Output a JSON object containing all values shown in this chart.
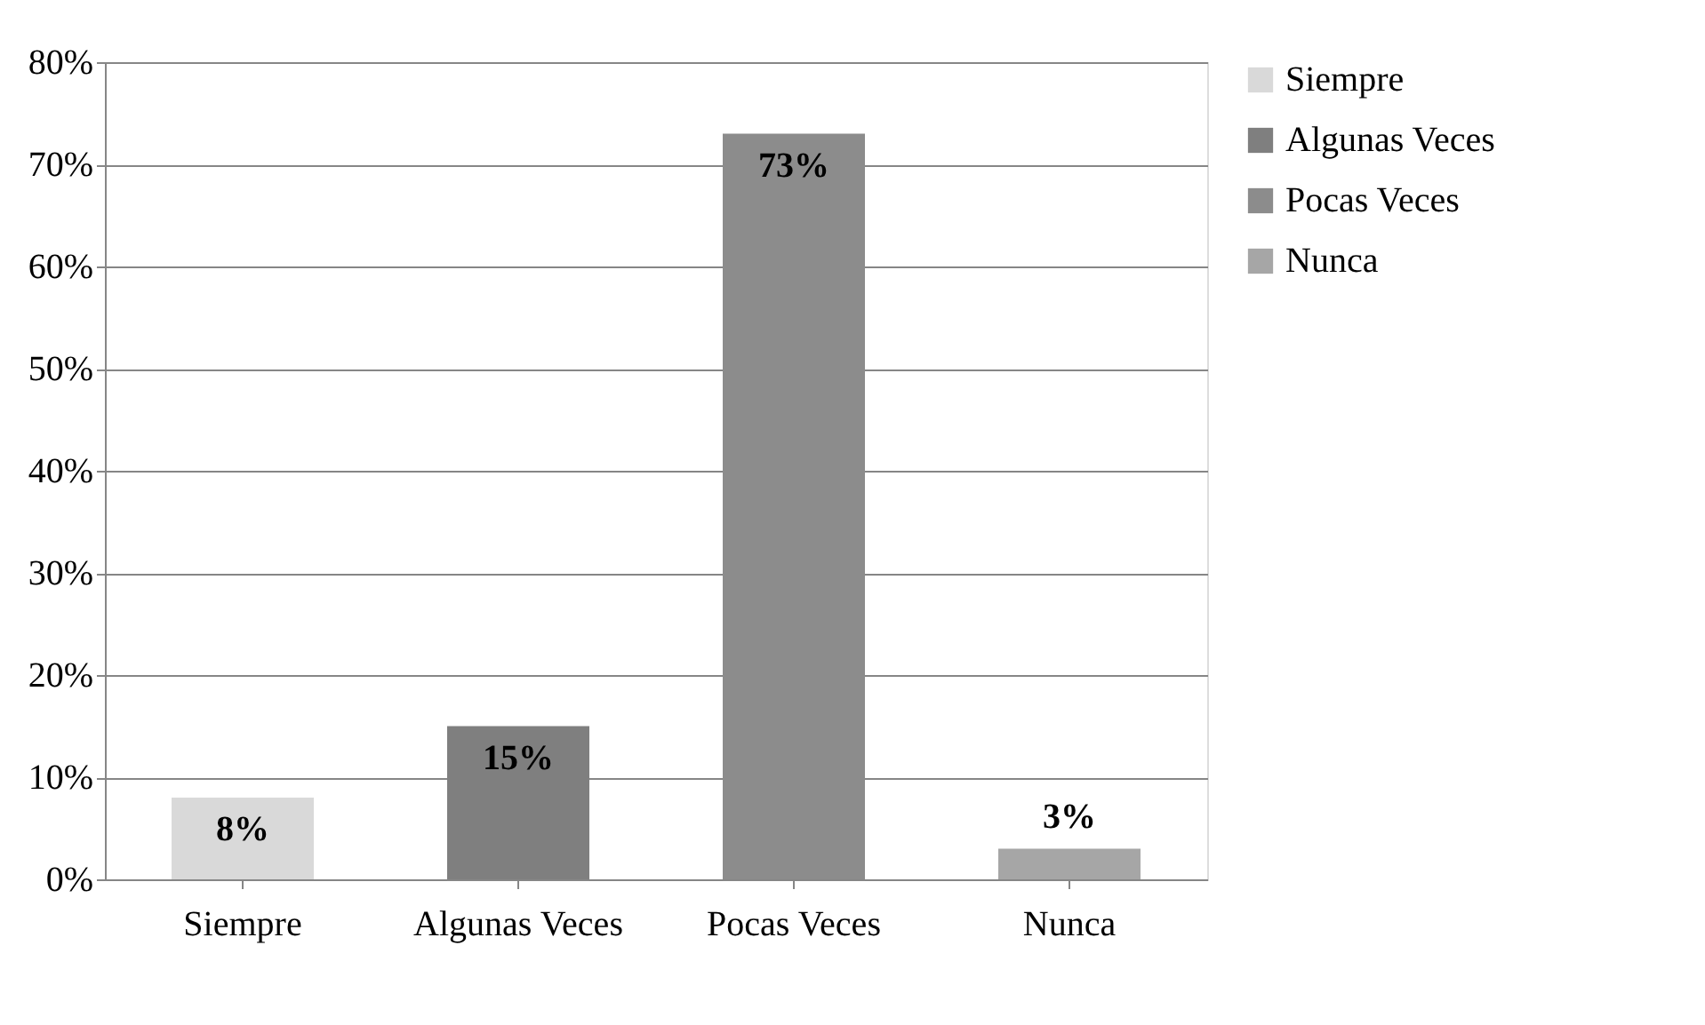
{
  "chart_data": {
    "type": "bar",
    "categories": [
      "Siempre",
      "Algunas Veces",
      "Pocas Veces",
      "Nunca"
    ],
    "series": [
      {
        "name": "Siempre",
        "color": "#d9d9d9",
        "values": [
          8,
          null,
          null,
          null
        ],
        "value_labels": [
          "8%",
          null,
          null,
          null
        ]
      },
      {
        "name": "Algunas Veces",
        "color": "#7f7f7f",
        "values": [
          null,
          15,
          null,
          null
        ],
        "value_labels": [
          null,
          "15%",
          null,
          null
        ]
      },
      {
        "name": "Pocas Veces",
        "color": "#8c8c8c",
        "values": [
          null,
          null,
          73,
          null
        ],
        "value_labels": [
          null,
          null,
          "73%",
          null
        ]
      },
      {
        "name": "Nunca",
        "color": "#a6a6a6",
        "values": [
          null,
          null,
          null,
          3
        ],
        "value_labels": [
          null,
          null,
          null,
          "3%"
        ]
      }
    ],
    "ylim": [
      0,
      80
    ],
    "yticks": [
      {
        "value": 0,
        "label": "0%"
      },
      {
        "value": 10,
        "label": "10%"
      },
      {
        "value": 20,
        "label": "20%"
      },
      {
        "value": 30,
        "label": "30%"
      },
      {
        "value": 40,
        "label": "40%"
      },
      {
        "value": 50,
        "label": "50%"
      },
      {
        "value": 60,
        "label": "60%"
      },
      {
        "value": 70,
        "label": "70%"
      },
      {
        "value": 80,
        "label": "80%"
      }
    ],
    "grid": "y",
    "legend": "right"
  }
}
